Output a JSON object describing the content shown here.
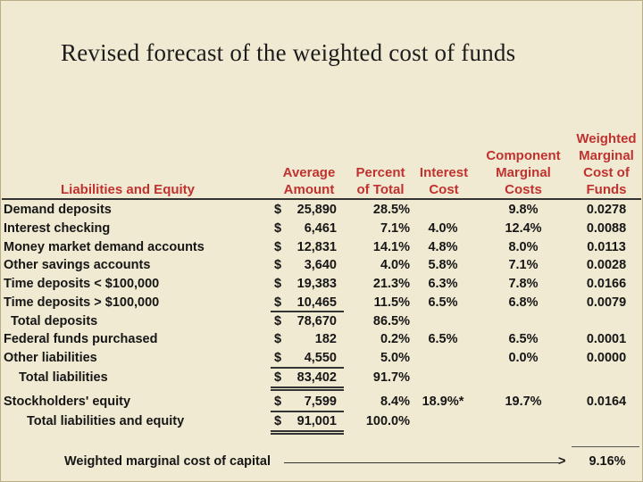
{
  "title": "Revised forecast of the weighted cost of funds",
  "headers": {
    "liabilities": "Liabilities and Equity",
    "average_amount": [
      "Average",
      "Amount"
    ],
    "percent_total": [
      "Percent",
      "of Total"
    ],
    "interest_cost": [
      "Interest",
      "Cost"
    ],
    "component_marginal": [
      "Component",
      "Marginal",
      "Costs"
    ],
    "weighted_marginal": [
      "Weighted",
      "Marginal",
      "Cost of",
      "Funds"
    ]
  },
  "rows": [
    {
      "label": "Demand deposits",
      "indent": 0,
      "dollar": "$",
      "amount": "25,890",
      "pct": "28.5%",
      "interest": "",
      "cmc": "9.8%",
      "wmc": "0.0278"
    },
    {
      "label": "Interest checking",
      "indent": 0,
      "dollar": "$",
      "amount": "6,461",
      "pct": "7.1%",
      "interest": "4.0%",
      "cmc": "12.4%",
      "wmc": "0.0088"
    },
    {
      "label": "Money market demand accounts",
      "indent": 0,
      "dollar": "$",
      "amount": "12,831",
      "pct": "14.1%",
      "interest": "4.8%",
      "cmc": "8.0%",
      "wmc": "0.0113"
    },
    {
      "label": "Other savings accounts",
      "indent": 0,
      "dollar": "$",
      "amount": "3,640",
      "pct": "4.0%",
      "interest": "5.8%",
      "cmc": "7.1%",
      "wmc": "0.0028"
    },
    {
      "label": "Time deposits < $100,000",
      "indent": 0,
      "dollar": "$",
      "amount": "19,383",
      "pct": "21.3%",
      "interest": "6.3%",
      "cmc": "7.8%",
      "wmc": "0.0166"
    },
    {
      "label": "Time deposits > $100,000",
      "indent": 0,
      "dollar": "$",
      "amount": "10,465",
      "pct": "11.5%",
      "interest": "6.5%",
      "cmc": "6.8%",
      "wmc": "0.0079"
    },
    {
      "label": "Total deposits",
      "indent": 1,
      "dollar": "$",
      "amount": "78,670",
      "pct": "86.5%",
      "interest": "",
      "cmc": "",
      "wmc": ""
    },
    {
      "label": "Federal funds purchased",
      "indent": 0,
      "dollar": "$",
      "amount": "182",
      "pct": "0.2%",
      "interest": "6.5%",
      "cmc": "6.5%",
      "wmc": "0.0001"
    },
    {
      "label": "Other liabilities",
      "indent": 0,
      "dollar": "$",
      "amount": "4,550",
      "pct": "5.0%",
      "interest": "",
      "cmc": "0.0%",
      "wmc": "0.0000"
    },
    {
      "label": "Total liabilities",
      "indent": 2,
      "dollar": "$",
      "amount": "83,402",
      "pct": "91.7%",
      "interest": "",
      "cmc": "",
      "wmc": ""
    },
    {
      "label": "Stockholders' equity",
      "indent": 0,
      "dollar": "$",
      "amount": "7,599",
      "pct": "8.4%",
      "interest": "18.9%*",
      "cmc": "19.7%",
      "wmc": "0.0164"
    },
    {
      "label": "Total liabilities and equity",
      "indent": 3,
      "dollar": "$",
      "amount": "91,001",
      "pct": "100.0%",
      "interest": "",
      "cmc": "",
      "wmc": ""
    }
  ],
  "footer": {
    "label": "Weighted marginal cost of capital",
    "arrow": ">",
    "value": "9.16%"
  }
}
